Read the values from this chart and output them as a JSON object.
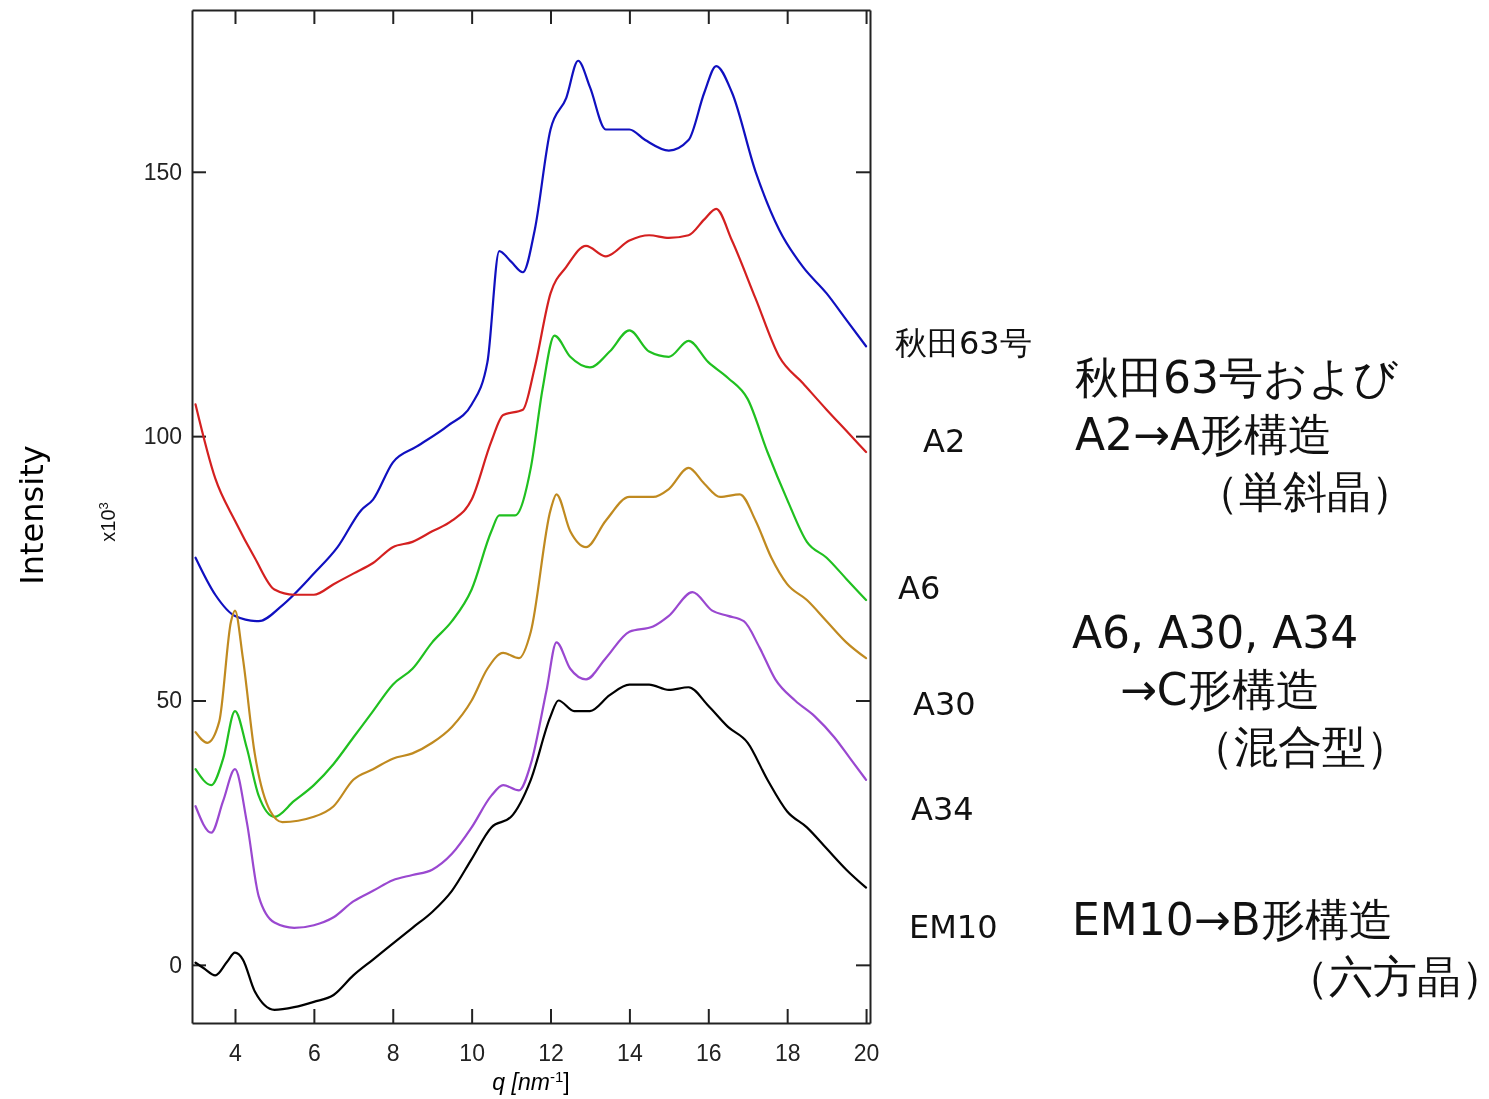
{
  "chart_data": {
    "type": "line",
    "xlabel": "q [nm$^{-1}$]",
    "ylabel": "Intensity",
    "xlim": [
      2.91,
      20.1
    ],
    "xticks": [
      4,
      6,
      8,
      10,
      12,
      14,
      16,
      18,
      20
    ],
    "ylim": [
      -11,
      180.6
    ],
    "yticks": [
      0,
      50,
      100,
      150
    ],
    "grid": false,
    "legend": false,
    "marker": "none",
    "line_style": "solid",
    "annotations": [
      "x10$^{3}$",
      "秋田63号および",
      "A2→A形構造",
      "（単斜晶）",
      "A6, A30, A34",
      "→C形構造",
      "（混合型）",
      "EM10→B形構造",
      "（六方晶）"
    ],
    "series": [
      {
        "name": "秋田63号",
        "color": "#1010c0",
        "x": [
          3.0,
          3.5,
          4.0,
          4.6,
          5.2,
          6,
          6.6,
          7.2,
          7.5,
          8,
          8.6,
          9.4,
          10,
          10.4,
          10.7,
          11,
          11.3,
          11.6,
          12,
          12.4,
          12.7,
          13,
          13.4,
          14,
          14.4,
          15,
          15.5,
          15.9,
          16.2,
          16.6,
          17.2,
          17.8,
          18.4,
          19,
          19.5,
          20
        ],
        "values": [
          77,
          70,
          66,
          65,
          68,
          74,
          79,
          86,
          88,
          95,
          98,
          102,
          106,
          114,
          135,
          133,
          131,
          139,
          158,
          164,
          171,
          166,
          158,
          158,
          156,
          154,
          156,
          165,
          170,
          165,
          150,
          139,
          132,
          127,
          122,
          117
        ]
      },
      {
        "name": "A2",
        "color": "#d42020",
        "x": [
          3.0,
          3.5,
          4,
          4.5,
          5,
          5.5,
          6,
          6.5,
          7,
          7.5,
          8,
          8.5,
          9,
          9.5,
          10,
          10.5,
          10.8,
          11.3,
          11.6,
          12,
          12.4,
          12.9,
          13.4,
          14,
          14.5,
          15,
          15.5,
          15.9,
          16.2,
          16.6,
          17.2,
          17.8,
          18.4,
          19,
          19.5,
          20
        ],
        "values": [
          106,
          92,
          84,
          77,
          71,
          70,
          70,
          72,
          74,
          76,
          79,
          80,
          82,
          84,
          88,
          99,
          104,
          105,
          113,
          127,
          132,
          136,
          134,
          137,
          138,
          137.5,
          138,
          141,
          143,
          137,
          126,
          115,
          110,
          105,
          101,
          97
        ]
      },
      {
        "name": "A6",
        "color": "#20c020",
        "x": [
          3.0,
          3.4,
          3.7,
          4.0,
          4.3,
          4.6,
          5,
          5.5,
          6,
          6.5,
          7,
          7.5,
          8,
          8.5,
          9,
          9.5,
          10,
          10.5,
          10.7,
          11.1,
          11.5,
          11.8,
          12.1,
          12.5,
          13,
          13.5,
          14,
          14.5,
          15,
          15.5,
          16,
          16.5,
          17,
          17.5,
          18,
          18.5,
          19,
          19.5,
          20
        ],
        "values": [
          37,
          34,
          39,
          48,
          41,
          32,
          28,
          31,
          34,
          38,
          43,
          48,
          53,
          56,
          61,
          65,
          71,
          82,
          85,
          85,
          94,
          109,
          119,
          115,
          113,
          116,
          120,
          116,
          115,
          118,
          114,
          111,
          107,
          97,
          88,
          80,
          77,
          73,
          69
        ]
      },
      {
        "name": "A30",
        "color": "#c08a20",
        "x": [
          3.0,
          3.3,
          3.6,
          3.9,
          4.0,
          4.2,
          4.5,
          4.9,
          5.2,
          6,
          6.5,
          7,
          7.5,
          8,
          8.5,
          9,
          9.5,
          10,
          10.4,
          10.8,
          11.2,
          11.5,
          12,
          12.15,
          12.5,
          12.9,
          13.4,
          14,
          14.6,
          15,
          15.5,
          15.9,
          16.3,
          16.8,
          17.2,
          17.6,
          18,
          18.5,
          19,
          19.5,
          20
        ],
        "values": [
          44,
          42,
          46,
          65,
          67,
          58,
          40,
          29,
          27,
          28,
          30,
          35,
          37,
          39,
          40,
          42,
          45,
          50,
          56,
          59,
          58,
          63,
          86,
          89,
          82,
          79,
          84,
          88.5,
          88.5,
          90,
          94,
          91,
          88.5,
          89,
          84,
          77,
          72,
          69,
          65,
          61,
          58
        ]
      },
      {
        "name": "A34",
        "color": "#9a48d0",
        "x": [
          3.0,
          3.4,
          3.7,
          4.0,
          4.3,
          4.6,
          5,
          5.5,
          6,
          6.5,
          7,
          7.5,
          8,
          8.5,
          9,
          9.5,
          10,
          10.5,
          10.8,
          11.2,
          11.5,
          11.9,
          12.15,
          12.5,
          12.9,
          13.4,
          14,
          14.6,
          15,
          15.6,
          16.1,
          16.5,
          16.9,
          17.3,
          17.7,
          18.2,
          18.7,
          19.2,
          19.6,
          20
        ],
        "values": [
          30,
          25,
          31,
          37,
          27,
          13,
          8,
          7,
          7.5,
          9,
          12,
          14,
          16,
          17,
          18,
          21,
          26,
          32,
          34,
          33,
          38,
          52,
          61,
          56,
          54,
          58,
          63,
          64,
          66,
          70.5,
          67,
          66,
          65,
          60,
          54,
          50,
          47,
          43,
          39,
          35
        ]
      },
      {
        "name": "EM10",
        "color": "#000000",
        "x": [
          3.0,
          3.2,
          3.5,
          3.8,
          4.0,
          4.2,
          4.5,
          5,
          5.5,
          6,
          6.5,
          7,
          7.5,
          8,
          8.5,
          9,
          9.5,
          10,
          10.5,
          11,
          11.5,
          12,
          12.2,
          12.6,
          13,
          13.5,
          14,
          14.5,
          15,
          15.5,
          16,
          16.5,
          17,
          17.5,
          18,
          18.5,
          19,
          19.5,
          20
        ],
        "values": [
          0.4,
          -0.6,
          -2,
          0.6,
          2.3,
          1,
          -5,
          -8.5,
          -8,
          -7,
          -5.7,
          -2,
          1,
          4,
          7,
          10,
          14,
          20,
          26,
          28,
          35,
          47,
          50,
          48,
          48,
          51,
          53,
          53,
          52,
          52.5,
          49,
          45,
          42,
          35,
          29,
          26,
          22,
          18,
          14.6
        ]
      }
    ]
  }
}
